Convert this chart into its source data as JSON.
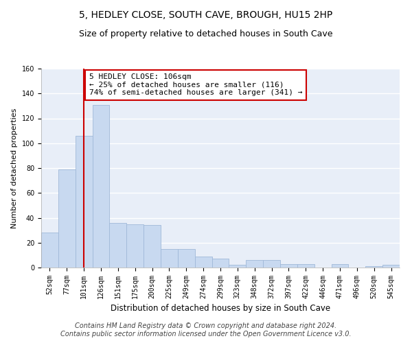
{
  "title": "5, HEDLEY CLOSE, SOUTH CAVE, BROUGH, HU15 2HP",
  "subtitle": "Size of property relative to detached houses in South Cave",
  "xlabel": "Distribution of detached houses by size in South Cave",
  "ylabel": "Number of detached properties",
  "categories": [
    "52sqm",
    "77sqm",
    "101sqm",
    "126sqm",
    "151sqm",
    "175sqm",
    "200sqm",
    "225sqm",
    "249sqm",
    "274sqm",
    "299sqm",
    "323sqm",
    "348sqm",
    "372sqm",
    "397sqm",
    "422sqm",
    "446sqm",
    "471sqm",
    "496sqm",
    "520sqm",
    "545sqm"
  ],
  "values": [
    28,
    79,
    106,
    131,
    36,
    35,
    34,
    15,
    15,
    9,
    7,
    2,
    6,
    6,
    3,
    3,
    0,
    3,
    0,
    1,
    2
  ],
  "bar_color": "#c8d9f0",
  "bar_edge_color": "#a0b8d8",
  "vline_x_idx": 2,
  "vline_color": "#cc0000",
  "annotation_text": "5 HEDLEY CLOSE: 106sqm\n← 25% of detached houses are smaller (116)\n74% of semi-detached houses are larger (341) →",
  "annotation_box_color": "white",
  "annotation_box_edge_color": "#cc0000",
  "ylim": [
    0,
    160
  ],
  "yticks": [
    0,
    20,
    40,
    60,
    80,
    100,
    120,
    140,
    160
  ],
  "footer1": "Contains HM Land Registry data © Crown copyright and database right 2024.",
  "footer2": "Contains public sector information licensed under the Open Government Licence v3.0.",
  "background_color": "#e8eef8",
  "grid_color": "white",
  "title_fontsize": 10,
  "subtitle_fontsize": 9,
  "xlabel_fontsize": 8.5,
  "ylabel_fontsize": 8,
  "tick_fontsize": 7,
  "footer_fontsize": 7,
  "annotation_fontsize": 8
}
